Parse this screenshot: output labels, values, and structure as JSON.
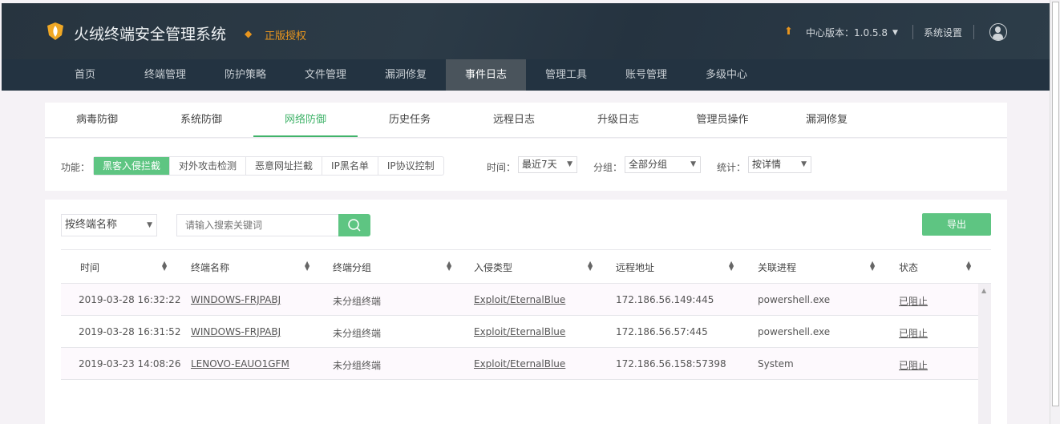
{
  "header": {
    "title": "火绒终端安全管理系统",
    "license": "正版授权",
    "version": "中心版本：1.0.5.8",
    "settings": "系统设置"
  },
  "nav": [
    "首页",
    "终端管理",
    "防护策略",
    "文件管理",
    "漏洞修复",
    "事件日志",
    "管理工具",
    "账号管理",
    "多级中心"
  ],
  "nav_active": "事件日志",
  "subtabs": [
    "病毒防御",
    "系统防御",
    "网络防御",
    "历史任务",
    "远程日志",
    "升级日志",
    "管理员操作",
    "漏洞修复"
  ],
  "subtab_active": "网络防御",
  "filters": {
    "function_label": "功能：",
    "functions": [
      "黑客入侵拦截",
      "对外攻击检测",
      "恶意网址拦截",
      "IP黑名单",
      "IP协议控制"
    ],
    "function_active": "黑客入侵拦截",
    "time_label": "时间：",
    "time_value": "最近7天",
    "group_label": "分组：",
    "group_value": "全部分组",
    "stat_label": "统计：",
    "stat_value": "按详情"
  },
  "search": {
    "field": "按终端名称",
    "placeholder": "请输入搜索关键词",
    "export": "导出"
  },
  "table": {
    "columns": [
      "时间",
      "终端名称",
      "终端分组",
      "入侵类型",
      "远程地址",
      "关联进程",
      "状态"
    ],
    "rows": [
      [
        "2019-03-28 16:32:22",
        "WINDOWS-FRJPABJ",
        "未分组终端",
        "Exploit/EternalBlue",
        "172.186.56.149:445",
        "powershell.exe",
        "已阻止"
      ],
      [
        "2019-03-28 16:31:52",
        "WINDOWS-FRJPABJ",
        "未分组终端",
        "Exploit/EternalBlue",
        "172.186.56.57:445",
        "powershell.exe",
        "已阻止"
      ],
      [
        "2019-03-23 14:08:26",
        "LENOVO-EAUO1GFM",
        "未分组终端",
        "Exploit/EternalBlue",
        "172.186.56.158:57398",
        "System",
        "已阻止"
      ]
    ]
  },
  "colors": {
    "accent": "#5ec582",
    "header": "#27343f",
    "nav": "#233341",
    "license": "#e8951e"
  }
}
